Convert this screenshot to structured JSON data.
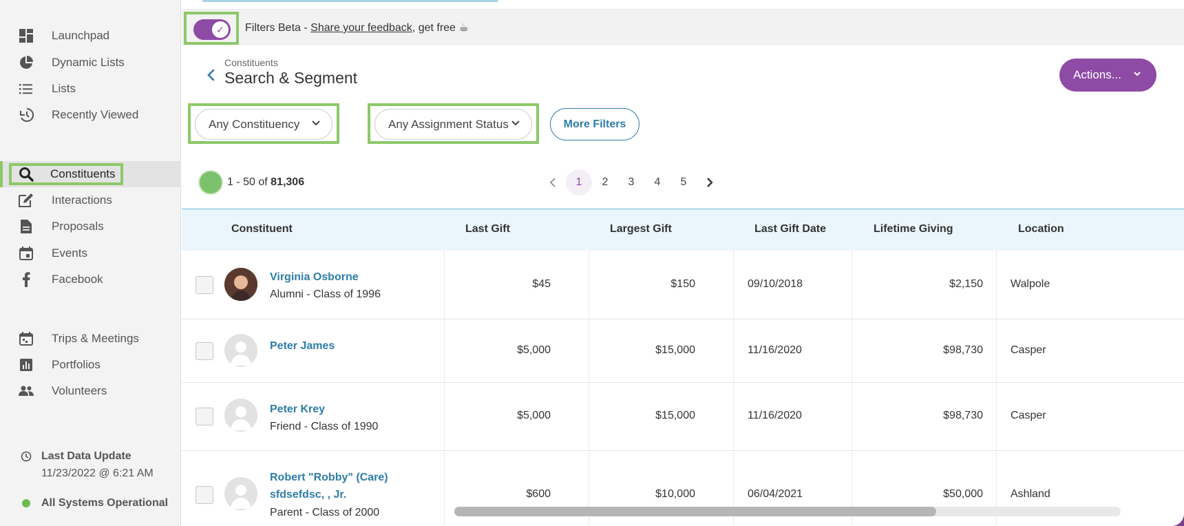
{
  "sidebar": {
    "items": [
      {
        "label": "Launchpad",
        "icon": "dashboard-icon"
      },
      {
        "label": "Dynamic Lists",
        "icon": "pie-chart-icon"
      },
      {
        "label": "Lists",
        "icon": "list-icon"
      },
      {
        "label": "Recently Viewed",
        "icon": "history-icon"
      },
      {
        "label": "Constituents",
        "icon": "search-icon"
      },
      {
        "label": "Interactions",
        "icon": "edit-icon"
      },
      {
        "label": "Proposals",
        "icon": "document-icon"
      },
      {
        "label": "Events",
        "icon": "calendar-icon"
      },
      {
        "label": "Facebook",
        "icon": "facebook-icon"
      },
      {
        "label": "Trips & Meetings",
        "icon": "trip-calendar-icon"
      },
      {
        "label": "Portfolios",
        "icon": "bar-chart-icon"
      },
      {
        "label": "Volunteers",
        "icon": "people-icon"
      }
    ],
    "active": "Constituents",
    "last_update_label": "Last Data Update",
    "last_update_value": "11/23/2022 @ 6:21 AM",
    "system_status": "All Systems Operational",
    "status_color": "#6dbb4d"
  },
  "filters_bar": {
    "prefix": "Filters Beta - ",
    "link": "Share your feedback",
    "suffix": ", get free ☕",
    "toggle_on": true
  },
  "header": {
    "breadcrumb": "Constituents",
    "title": "Search & Segment",
    "actions_label": "Actions..."
  },
  "filters": {
    "constituency": "Any Constituency",
    "assignment": "Any Assignment Status",
    "more": "More Filters"
  },
  "results": {
    "range": "1 - 50 of ",
    "total": "81,306",
    "pages": [
      "1",
      "2",
      "3",
      "4",
      "5"
    ],
    "current_page": "1"
  },
  "table": {
    "columns": [
      "Constituent",
      "Last Gift",
      "Largest Gift",
      "Last Gift Date",
      "Lifetime Giving",
      "Location"
    ],
    "rows": [
      {
        "name": "Virginia Osborne",
        "name2": "",
        "sub": "Alumni - Class of 1996",
        "last_gift": "$45",
        "largest_gift": "$150",
        "date": "09/10/2018",
        "lifetime": "$2,150",
        "location": "Walpole",
        "photo": true
      },
      {
        "name": "Peter James",
        "name2": "",
        "sub": "",
        "last_gift": "$5,000",
        "largest_gift": "$15,000",
        "date": "11/16/2020",
        "lifetime": "$98,730",
        "location": "Casper",
        "photo": false
      },
      {
        "name": "Peter Krey",
        "name2": "",
        "sub": "Friend - Class of 1990",
        "last_gift": "$5,000",
        "largest_gift": "$15,000",
        "date": "11/16/2020",
        "lifetime": "$98,730",
        "location": "Casper",
        "photo": false
      },
      {
        "name": "Robert \"Robby\" (Care)",
        "name2": "sfdsefdsc, , Jr.",
        "sub": "Parent - Class of 2000",
        "last_gift": "$600",
        "largest_gift": "$10,000",
        "date": "06/04/2021",
        "lifetime": "$50,000",
        "location": "Ashland",
        "photo": false
      }
    ]
  },
  "colors": {
    "brand_purple": "#8e4ba5",
    "link_blue": "#2d7da8",
    "highlight_green": "#8dc868"
  }
}
